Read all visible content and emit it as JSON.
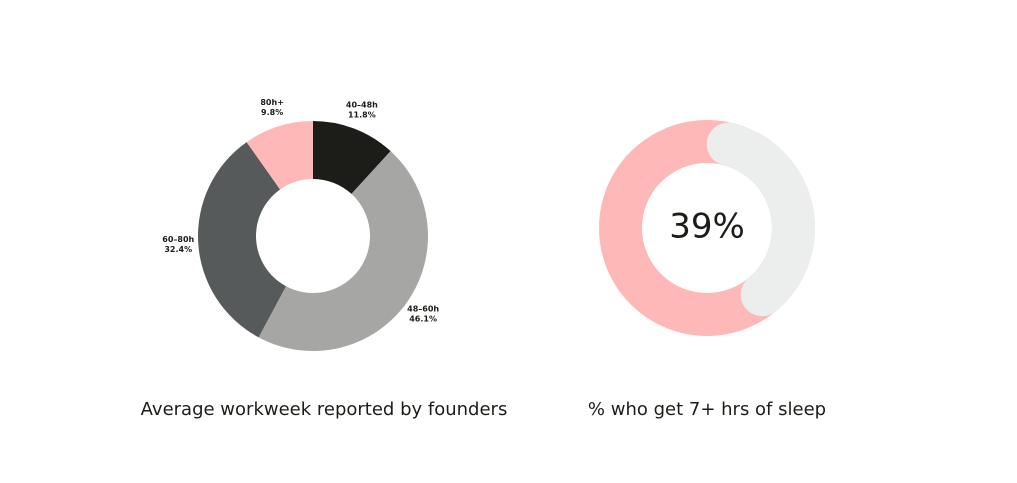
{
  "chart_data": [
    {
      "type": "donut",
      "title": "Average workweek reported by founders",
      "categories": [
        "40–48h",
        "48–60h",
        "60–80h",
        "80h+"
      ],
      "values": [
        11.8,
        46.1,
        32.4,
        9.8
      ],
      "value_labels": [
        "11.8%",
        "46.1%",
        "32.4%",
        "9.8%"
      ],
      "colors": [
        "#1c1c18",
        "#a6a6a4",
        "#575a5a",
        "#ffb8b8"
      ]
    },
    {
      "type": "progress",
      "title": "% who get 7+ hrs of sleep",
      "value": 39,
      "value_label": "39%",
      "color": "#eceeee",
      "track_color": "#ffb8b8"
    }
  ]
}
